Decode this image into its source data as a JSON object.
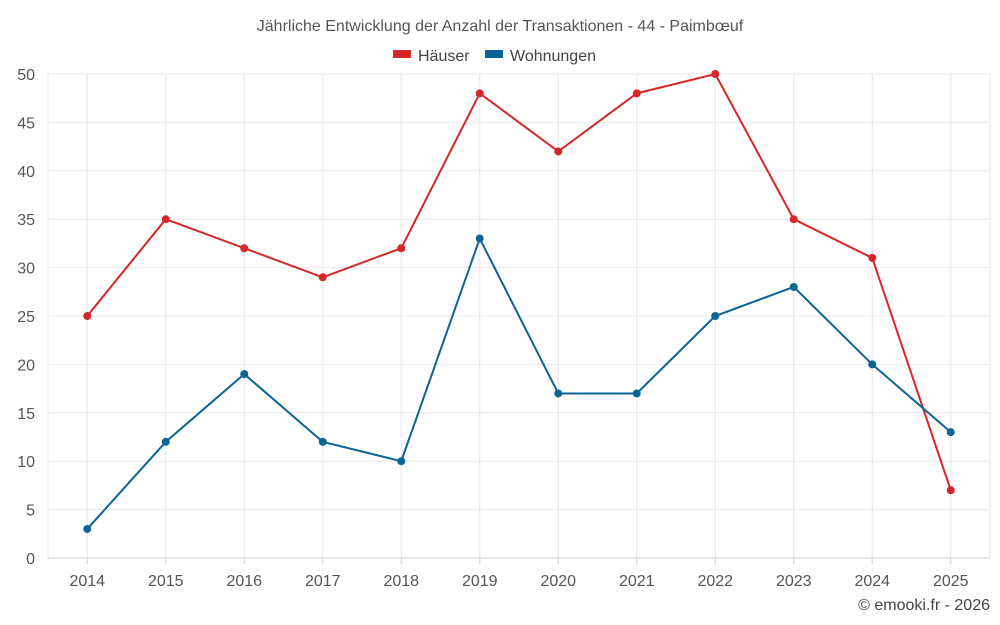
{
  "chart_data": {
    "type": "line",
    "title": "Jährliche Entwicklung der Anzahl der Transaktionen - 44 - Paimbœuf",
    "categories": [
      "2014",
      "2015",
      "2016",
      "2017",
      "2018",
      "2019",
      "2020",
      "2021",
      "2022",
      "2023",
      "2024",
      "2025"
    ],
    "series": [
      {
        "name": "Häuser",
        "color": "#d62728",
        "values": [
          25,
          35,
          32,
          29,
          32,
          48,
          42,
          48,
          50,
          35,
          31,
          7
        ]
      },
      {
        "name": "Wohnungen",
        "color": "#0a6496",
        "values": [
          3,
          12,
          19,
          12,
          10,
          33,
          17,
          17,
          25,
          28,
          20,
          13
        ]
      }
    ],
    "yticks": [
      0,
      5,
      10,
      15,
      20,
      25,
      30,
      35,
      40,
      45,
      50
    ],
    "ylim": [
      0,
      50
    ],
    "grid": true,
    "legend_position": "top-center",
    "xlabel": "",
    "ylabel": ""
  },
  "credit": "© emooki.fr - 2026"
}
